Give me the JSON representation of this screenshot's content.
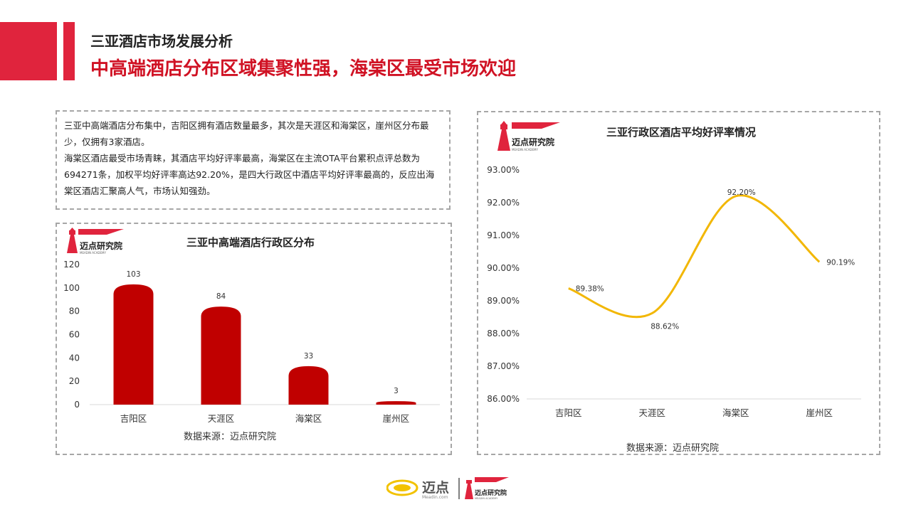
{
  "header": {
    "section_title": "三亚酒店市场发展分析",
    "headline": "中高端酒店分布区域集聚性强，海棠区最受市场欢迎"
  },
  "summary": {
    "paragraph1": "三亚中高端酒店分布集中，吉阳区拥有酒店数量最多，其次是天涯区和海棠区，崖州区分布最少，仅拥有3家酒店。",
    "paragraph2": "海棠区酒店最受市场青睐，其酒店平均好评率最高，海棠区在主流OTA平台累积点评总数为694271条，加权平均好评率高达92.20%，是四大行政区中酒店平均好评率最高的，反应出海棠区酒店汇聚高人气，市场认知强劲。"
  },
  "logo": {
    "institute_name": "迈点研究院",
    "institute_subtitle": "MEADIN ACADEMY",
    "brand_name": "迈点",
    "brand_domain": "Meadin.com",
    "brand_color": "#e0243d"
  },
  "chart_data": [
    {
      "type": "bar",
      "title": "三亚中高端酒店行政区分布",
      "categories": [
        "吉阳区",
        "天涯区",
        "海棠区",
        "崖州区"
      ],
      "values": [
        103,
        84,
        33,
        3
      ],
      "data_labels": [
        "103",
        "84",
        "33",
        "3"
      ],
      "ylim": [
        0,
        120
      ],
      "yticks": [
        0,
        20,
        40,
        60,
        80,
        100,
        120
      ],
      "ytick_labels": [
        "0",
        "20",
        "40",
        "60",
        "80",
        "100",
        "120"
      ],
      "grid": false,
      "bar_color": "#c00000",
      "source": "数据来源：迈点研究院"
    },
    {
      "type": "line",
      "title": "三亚行政区酒店平均好评率情况",
      "categories": [
        "吉阳区",
        "天涯区",
        "海棠区",
        "崖州区"
      ],
      "values": [
        89.38,
        88.62,
        92.2,
        90.19
      ],
      "data_labels": [
        "89.38%",
        "88.62%",
        "92.20%",
        "90.19%"
      ],
      "ylim": [
        86,
        93
      ],
      "yticks": [
        86,
        87,
        88,
        89,
        90,
        91,
        92,
        93
      ],
      "ytick_labels": [
        "86.00%",
        "87.00%",
        "88.00%",
        "89.00%",
        "90.00%",
        "91.00%",
        "92.00%",
        "93.00%"
      ],
      "grid": false,
      "line_color": "#f2b705",
      "smooth": true,
      "source": "数据来源：迈点研究院"
    }
  ]
}
